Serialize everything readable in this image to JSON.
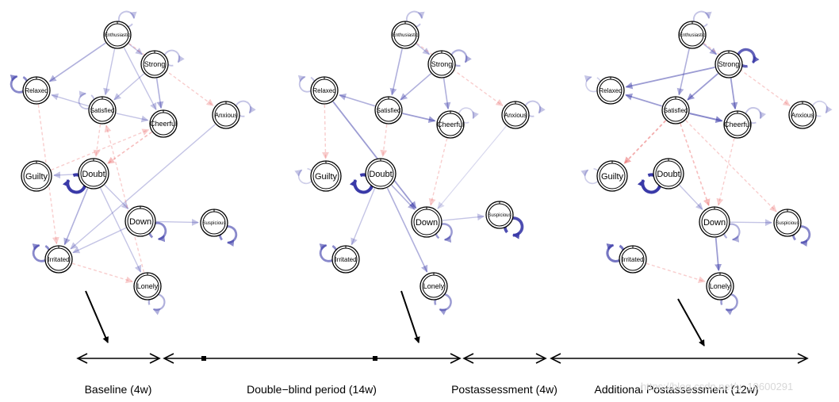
{
  "networks": [
    {
      "id": "baseline",
      "nodes": [
        "Enthusiastic",
        "Strong",
        "Relaxed",
        "Satisfied",
        "Cheerful",
        "Anxious",
        "Guilty",
        "Doubt",
        "Down",
        "Suspicious",
        "Irritated",
        "Lonely"
      ],
      "edges": [
        {
          "from": "Enthusiastic",
          "to": "Relaxed",
          "sign": "pos",
          "w": 0.4
        },
        {
          "from": "Enthusiastic",
          "to": "Satisfied",
          "sign": "pos",
          "w": 0.3
        },
        {
          "from": "Enthusiastic",
          "to": "Strong",
          "sign": "pos",
          "w": 0.3
        },
        {
          "from": "Enthusiastic",
          "to": "Cheerful",
          "sign": "pos",
          "w": 0.3
        },
        {
          "from": "Strong",
          "to": "Satisfied",
          "sign": "pos",
          "w": 0.3
        },
        {
          "from": "Strong",
          "to": "Cheerful",
          "sign": "pos",
          "w": 0.4
        },
        {
          "from": "Satisfied",
          "to": "Relaxed",
          "sign": "pos",
          "w": 0.3
        },
        {
          "from": "Satisfied",
          "to": "Cheerful",
          "sign": "pos",
          "w": 0.3
        },
        {
          "from": "Satisfied",
          "to": "Doubt",
          "sign": "neg",
          "w": 0.3
        },
        {
          "from": "Cheerful",
          "to": "Doubt",
          "sign": "neg",
          "w": 0.4
        },
        {
          "from": "Doubt",
          "to": "Guilty",
          "sign": "pos",
          "w": 0.3
        },
        {
          "from": "Doubt",
          "to": "Irritated",
          "sign": "pos",
          "w": 0.4
        },
        {
          "from": "Doubt",
          "to": "Down",
          "sign": "pos",
          "w": 0.3
        },
        {
          "from": "Doubt",
          "to": "Lonely",
          "sign": "pos",
          "w": 0.3
        },
        {
          "from": "Down",
          "to": "Irritated",
          "sign": "pos",
          "w": 0.3
        },
        {
          "from": "Down",
          "to": "Suspicious",
          "sign": "pos",
          "w": 0.3
        },
        {
          "from": "Irritated",
          "to": "Lonely",
          "sign": "neg",
          "w": 0.3
        },
        {
          "from": "Anxious",
          "to": "Irritated",
          "sign": "pos",
          "w": 0.3
        },
        {
          "from": "Enthusiastic",
          "to": "Anxious",
          "sign": "neg",
          "w": 0.3
        },
        {
          "from": "Relaxed",
          "to": "Irritated",
          "sign": "neg",
          "w": 0.3
        },
        {
          "from": "Guilty",
          "to": "Cheerful",
          "sign": "neg",
          "w": 0.3
        },
        {
          "from": "Lonely",
          "to": "Satisfied",
          "sign": "neg",
          "w": 0.3
        }
      ],
      "self_loops": [
        {
          "node": "Enthusiastic",
          "w": 0.3
        },
        {
          "node": "Strong",
          "w": 0.3
        },
        {
          "node": "Relaxed",
          "w": 0.6
        },
        {
          "node": "Anxious",
          "w": 0.3
        },
        {
          "node": "Doubt",
          "w": 1.0
        },
        {
          "node": "Down",
          "w": 0.6
        },
        {
          "node": "Suspicious",
          "w": 0.6
        },
        {
          "node": "Irritated",
          "w": 0.6
        },
        {
          "node": "Lonely",
          "w": 0.4
        },
        {
          "node": "Satisfied",
          "w": 0.3
        }
      ]
    },
    {
      "id": "double-blind",
      "nodes": [
        "Enthusiastic",
        "Strong",
        "Relaxed",
        "Satisfied",
        "Cheerful",
        "Anxious",
        "Guilty",
        "Doubt",
        "Down",
        "Suspicious",
        "Irritated",
        "Lonely"
      ],
      "edges": [
        {
          "from": "Enthusiastic",
          "to": "Satisfied",
          "sign": "pos",
          "w": 0.4
        },
        {
          "from": "Enthusiastic",
          "to": "Strong",
          "sign": "pos",
          "w": 0.3
        },
        {
          "from": "Strong",
          "to": "Satisfied",
          "sign": "pos",
          "w": 0.4
        },
        {
          "from": "Strong",
          "to": "Cheerful",
          "sign": "pos",
          "w": 0.4
        },
        {
          "from": "Satisfied",
          "to": "Relaxed",
          "sign": "pos",
          "w": 0.4
        },
        {
          "from": "Satisfied",
          "to": "Cheerful",
          "sign": "pos",
          "w": 0.5
        },
        {
          "from": "Relaxed",
          "to": "Down",
          "sign": "pos",
          "w": 0.5
        },
        {
          "from": "Doubt",
          "to": "Down",
          "sign": "pos",
          "w": 0.4
        },
        {
          "from": "Doubt",
          "to": "Lonely",
          "sign": "pos",
          "w": 0.4
        },
        {
          "from": "Doubt",
          "to": "Irritated",
          "sign": "pos",
          "w": 0.3
        },
        {
          "from": "Down",
          "to": "Suspicious",
          "sign": "pos",
          "w": 0.3
        },
        {
          "from": "Satisfied",
          "to": "Doubt",
          "sign": "neg",
          "w": 0.3
        },
        {
          "from": "Cheerful",
          "to": "Down",
          "sign": "neg",
          "w": 0.3
        },
        {
          "from": "Relaxed",
          "to": "Guilty",
          "sign": "neg",
          "w": 0.3
        },
        {
          "from": "Enthusiastic",
          "to": "Anxious",
          "sign": "neg",
          "w": 0.3
        },
        {
          "from": "Anxious",
          "to": "Down",
          "sign": "pos",
          "w": 0.2
        }
      ],
      "self_loops": [
        {
          "node": "Enthusiastic",
          "w": 0.3
        },
        {
          "node": "Strong",
          "w": 0.4
        },
        {
          "node": "Relaxed",
          "w": 0.3
        },
        {
          "node": "Anxious",
          "w": 0.3
        },
        {
          "node": "Doubt",
          "w": 1.0
        },
        {
          "node": "Down",
          "w": 0.5
        },
        {
          "node": "Suspicious",
          "w": 0.9
        },
        {
          "node": "Irritated",
          "w": 0.6
        },
        {
          "node": "Lonely",
          "w": 0.5
        },
        {
          "node": "Cheerful",
          "w": 0.2
        },
        {
          "node": "Guilty",
          "w": 0.2
        }
      ]
    },
    {
      "id": "additional-postassessment",
      "nodes": [
        "Enthusiastic",
        "Strong",
        "Relaxed",
        "Satisfied",
        "Cheerful",
        "Anxious",
        "Guilty",
        "Doubt",
        "Down",
        "Suspicious",
        "Irritated",
        "Lonely"
      ],
      "edges": [
        {
          "from": "Enthusiastic",
          "to": "Satisfied",
          "sign": "pos",
          "w": 0.4
        },
        {
          "from": "Enthusiastic",
          "to": "Strong",
          "sign": "pos",
          "w": 0.4
        },
        {
          "from": "Strong",
          "to": "Relaxed",
          "sign": "pos",
          "w": 0.5
        },
        {
          "from": "Strong",
          "to": "Satisfied",
          "sign": "pos",
          "w": 0.5
        },
        {
          "from": "Strong",
          "to": "Cheerful",
          "sign": "pos",
          "w": 0.5
        },
        {
          "from": "Satisfied",
          "to": "Relaxed",
          "sign": "pos",
          "w": 0.5
        },
        {
          "from": "Satisfied",
          "to": "Cheerful",
          "sign": "pos",
          "w": 0.6
        },
        {
          "from": "Satisfied",
          "to": "Guilty",
          "sign": "neg",
          "w": 0.5
        },
        {
          "from": "Satisfied",
          "to": "Down",
          "sign": "neg",
          "w": 0.4
        },
        {
          "from": "Cheerful",
          "to": "Down",
          "sign": "neg",
          "w": 0.3
        },
        {
          "from": "Doubt",
          "to": "Down",
          "sign": "pos",
          "w": 0.3
        },
        {
          "from": "Down",
          "to": "Lonely",
          "sign": "pos",
          "w": 0.5
        },
        {
          "from": "Down",
          "to": "Suspicious",
          "sign": "pos",
          "w": 0.3
        },
        {
          "from": "Irritated",
          "to": "Lonely",
          "sign": "neg",
          "w": 0.3
        },
        {
          "from": "Enthusiastic",
          "to": "Anxious",
          "sign": "neg",
          "w": 0.3
        },
        {
          "from": "Satisfied",
          "to": "Suspicious",
          "sign": "neg",
          "w": 0.3
        }
      ],
      "self_loops": [
        {
          "node": "Enthusiastic",
          "w": 0.3
        },
        {
          "node": "Strong",
          "w": 0.8
        },
        {
          "node": "Relaxed",
          "w": 0.2
        },
        {
          "node": "Anxious",
          "w": 0.2
        },
        {
          "node": "Doubt",
          "w": 1.0
        },
        {
          "node": "Down",
          "w": 0.4
        },
        {
          "node": "Suspicious",
          "w": 0.6
        },
        {
          "node": "Irritated",
          "w": 0.7
        },
        {
          "node": "Lonely",
          "w": 0.5
        },
        {
          "node": "Cheerful",
          "w": 0.3
        },
        {
          "node": "Guilty",
          "w": 0.2
        }
      ]
    }
  ],
  "timeline": {
    "periods": [
      {
        "label": "Baseline (4w)"
      },
      {
        "label": "Double−blind period (14w)"
      },
      {
        "label": "Postassessment (4w)"
      },
      {
        "label": "Additional Postassessment (12w)"
      }
    ]
  },
  "colors": {
    "positive_edge": "#3a3aa8",
    "negative_edge": "#e85a5a",
    "node_stroke": "#000000",
    "arrow": "#000000"
  },
  "watermark": "https://blog.csdn.net/u_19600291"
}
